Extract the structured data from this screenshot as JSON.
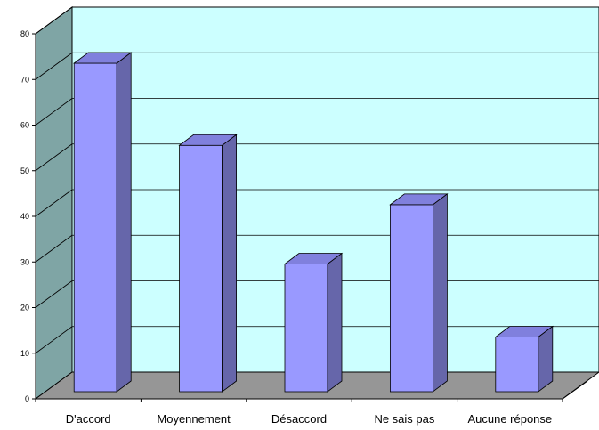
{
  "chart_data": {
    "type": "bar",
    "title": "",
    "xlabel": "",
    "ylabel": "",
    "categories": [
      "D'accord",
      "Moyennement",
      "Désaccord",
      "Ne sais pas",
      "Aucune réponse"
    ],
    "values": [
      72,
      54,
      28,
      41,
      12
    ],
    "ylim": [
      0,
      80
    ],
    "yticks": [
      "0",
      "10",
      "20",
      "30",
      "40",
      "50",
      "60",
      "70",
      "80"
    ],
    "grid": true,
    "legend": "none",
    "colors": {
      "bar_front": "#9999ff",
      "bar_side": "#6666aa",
      "bar_top": "#8080dd",
      "back_wall": "#ccffff",
      "side_wall": "#7fa5a5",
      "floor": "#969696",
      "grid": "#000000"
    }
  }
}
